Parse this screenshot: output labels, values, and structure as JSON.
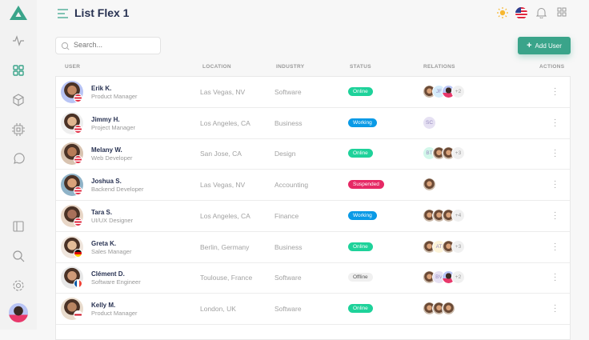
{
  "header": {
    "title": "List Flex 1"
  },
  "search": {
    "placeholder": "Search..."
  },
  "toolbar": {
    "add_label": "Add User"
  },
  "columns": [
    "USER",
    "LOCATION",
    "INDUSTRY",
    "STATUS",
    "RELATIONS",
    "ACTIONS"
  ],
  "colors": {
    "accent": "#3aa48a",
    "online": "#1ed29a",
    "working": "#0a9ae6",
    "suspended": "#e62965",
    "offline": "#f0f0f0"
  },
  "rows": [
    {
      "name": "Erik K.",
      "role": "Product Manager",
      "location": "Las Vegas, NV",
      "industry": "Software",
      "status": "Online",
      "flag": "us",
      "relations": [
        {
          "type": "photo"
        },
        {
          "type": "initials",
          "text": "JF",
          "color": "#d5ecfb"
        },
        {
          "type": "photo-male"
        }
      ],
      "more": "+2"
    },
    {
      "name": "Jimmy H.",
      "role": "Project Manager",
      "location": "Los Angeles, CA",
      "industry": "Business",
      "status": "Working",
      "flag": "us",
      "relations": [
        {
          "type": "initials",
          "text": "SC",
          "color": "#e6e1f3"
        }
      ],
      "more": ""
    },
    {
      "name": "Melany W.",
      "role": "Web Developer",
      "location": "San Jose, CA",
      "industry": "Design",
      "status": "Online",
      "flag": "us",
      "relations": [
        {
          "type": "initials",
          "text": "BT",
          "color": "#d2f7ea"
        },
        {
          "type": "photo"
        },
        {
          "type": "photo"
        }
      ],
      "more": "+3"
    },
    {
      "name": "Joshua S.",
      "role": "Backend Developer",
      "location": "Las Vegas, NV",
      "industry": "Accounting",
      "status": "Suspended",
      "flag": "us",
      "relations": [
        {
          "type": "photo"
        }
      ],
      "more": ""
    },
    {
      "name": "Tara S.",
      "role": "UI/UX Designer",
      "location": "Los Angeles, CA",
      "industry": "Finance",
      "status": "Working",
      "flag": "us",
      "relations": [
        {
          "type": "photo"
        },
        {
          "type": "photo"
        },
        {
          "type": "photo"
        }
      ],
      "more": "+4"
    },
    {
      "name": "Greta K.",
      "role": "Sales Manager",
      "location": "Berlin, Germany",
      "industry": "Business",
      "status": "Online",
      "flag": "de",
      "relations": [
        {
          "type": "photo"
        },
        {
          "type": "initials",
          "text": "AT",
          "color": "#fdf4d9"
        },
        {
          "type": "photo"
        }
      ],
      "more": "+3"
    },
    {
      "name": "Clément D.",
      "role": "Software Engineer",
      "location": "Toulouse, France",
      "industry": "Software",
      "status": "Offline",
      "flag": "fr",
      "relations": [
        {
          "type": "photo"
        },
        {
          "type": "initials",
          "text": "BV",
          "color": "#e6e1f3"
        },
        {
          "type": "photo-male"
        }
      ],
      "more": "+2"
    },
    {
      "name": "Kelly M.",
      "role": "Product Manager",
      "location": "London, UK",
      "industry": "Software",
      "status": "Online",
      "flag": "gb",
      "relations": [
        {
          "type": "photo"
        },
        {
          "type": "photo"
        },
        {
          "type": "photo"
        }
      ],
      "more": ""
    }
  ]
}
